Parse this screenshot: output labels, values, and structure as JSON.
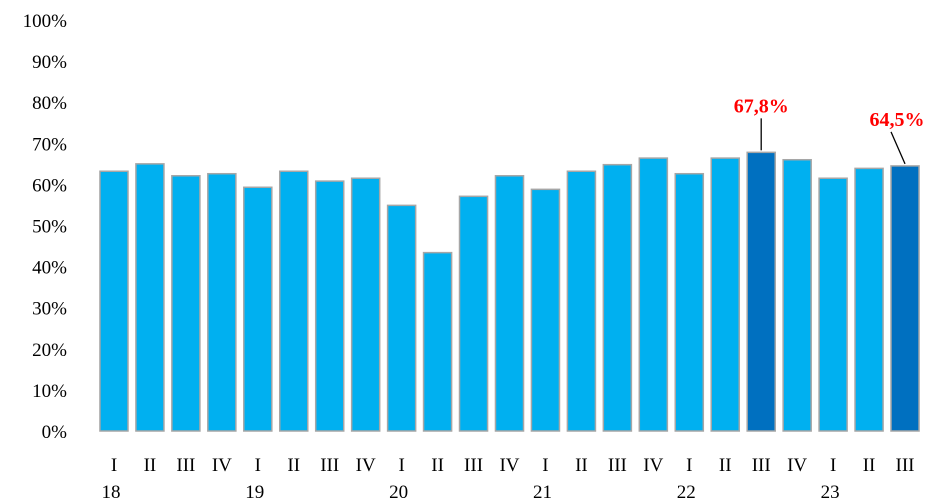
{
  "chart_data": {
    "type": "bar",
    "title": "",
    "xlabel": "",
    "ylabel": "",
    "ylim": [
      0,
      100
    ],
    "yticks": [
      "0%",
      "10%",
      "20%",
      "30%",
      "40%",
      "50%",
      "60%",
      "70%",
      "80%",
      "90%",
      "100%"
    ],
    "categories": [
      "I",
      "II",
      "III",
      "IV",
      "I",
      "II",
      "III",
      "IV",
      "I",
      "II",
      "III",
      "IV",
      "I",
      "II",
      "III",
      "IV",
      "I",
      "II",
      "III",
      "IV",
      "I",
      "II",
      "III"
    ],
    "year_labels": [
      {
        "label": "18",
        "index": 0
      },
      {
        "label": "19",
        "index": 4
      },
      {
        "label": "20",
        "index": 8
      },
      {
        "label": "21",
        "index": 12
      },
      {
        "label": "22",
        "index": 16
      },
      {
        "label": "23",
        "index": 20
      }
    ],
    "values": [
      63.2,
      65.0,
      62.1,
      62.6,
      59.3,
      63.2,
      60.8,
      61.5,
      54.9,
      43.4,
      57.1,
      62.1,
      58.8,
      63.2,
      64.8,
      66.4,
      62.6,
      66.4,
      67.8,
      66.0,
      61.5,
      63.9,
      64.5
    ],
    "highlight_indices": [
      18,
      22
    ],
    "data_labels": [
      {
        "index": 18,
        "text": "67,8%"
      },
      {
        "index": 22,
        "text": "64,5%"
      }
    ],
    "colors": {
      "bar": "#00b0f0",
      "bar_highlight": "#0070c0",
      "bar_stroke": "#a6a6a6",
      "label": "#ff0000"
    },
    "grid": false,
    "legend": "none"
  }
}
